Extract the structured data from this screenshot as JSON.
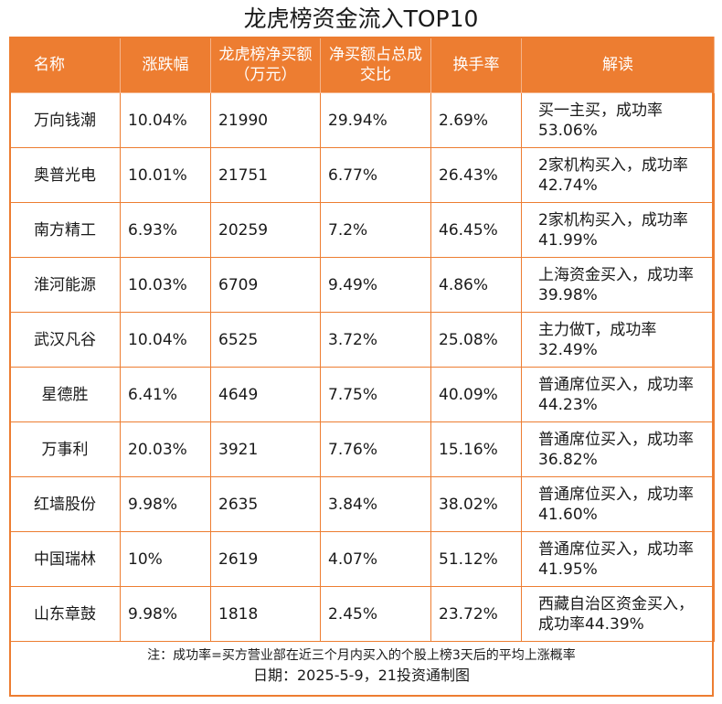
{
  "title": "龙虎榜资金流入TOP10",
  "headers": [
    "名称",
    "涨跌幅",
    "龙虎榜净买额（万元）",
    "净买额占总成交比",
    "换手率",
    "解读"
  ],
  "rows": [
    {
      "name": "万向钱潮",
      "change": "10.04%",
      "net_buy": "21990",
      "ratio": "29.94%",
      "turnover": "2.69%",
      "note": "买一主买，成功率53.06%"
    },
    {
      "name": "奥普光电",
      "change": "10.01%",
      "net_buy": "21751",
      "ratio": "6.77%",
      "turnover": "26.43%",
      "note": "2家机构买入，成功率42.74%"
    },
    {
      "name": "南方精工",
      "change": "6.93%",
      "net_buy": "20259",
      "ratio": "7.2%",
      "turnover": "46.45%",
      "note": "2家机构买入，成功率41.99%"
    },
    {
      "name": "淮河能源",
      "change": "10.03%",
      "net_buy": "6709",
      "ratio": "9.49%",
      "turnover": "4.86%",
      "note": "上海资金买入，成功率39.98%"
    },
    {
      "name": "武汉凡谷",
      "change": "10.04%",
      "net_buy": "6525",
      "ratio": "3.72%",
      "turnover": "25.08%",
      "note": "主力做T，成功率32.49%"
    },
    {
      "name": "星德胜",
      "change": "6.41%",
      "net_buy": "4649",
      "ratio": "7.75%",
      "turnover": "40.09%",
      "note": "普通席位买入，成功率44.23%"
    },
    {
      "name": "万事利",
      "change": "20.03%",
      "net_buy": "3921",
      "ratio": "7.76%",
      "turnover": "15.16%",
      "note": "普通席位买入，成功率36.82%"
    },
    {
      "name": "红墙股份",
      "change": "9.98%",
      "net_buy": "2635",
      "ratio": "3.84%",
      "turnover": "38.02%",
      "note": "普通席位买入，成功率41.60%"
    },
    {
      "name": "中国瑞林",
      "change": "10%",
      "net_buy": "2619",
      "ratio": "4.07%",
      "turnover": "51.12%",
      "note": "普通席位买入，成功率41.95%"
    },
    {
      "name": "山东章鼓",
      "change": "9.98%",
      "net_buy": "1818",
      "ratio": "2.45%",
      "turnover": "23.72%",
      "note": "西藏自治区资金买入，成功率44.39%"
    }
  ],
  "footnote": "注：成功率=买方营业部在近三个月内买入的个股上榜3天后的平均上涨概率",
  "date_line": "日期：2025-5-9，21投资通制图",
  "colors": {
    "accent": "#ed7d31",
    "header_text": "#ffffff"
  }
}
